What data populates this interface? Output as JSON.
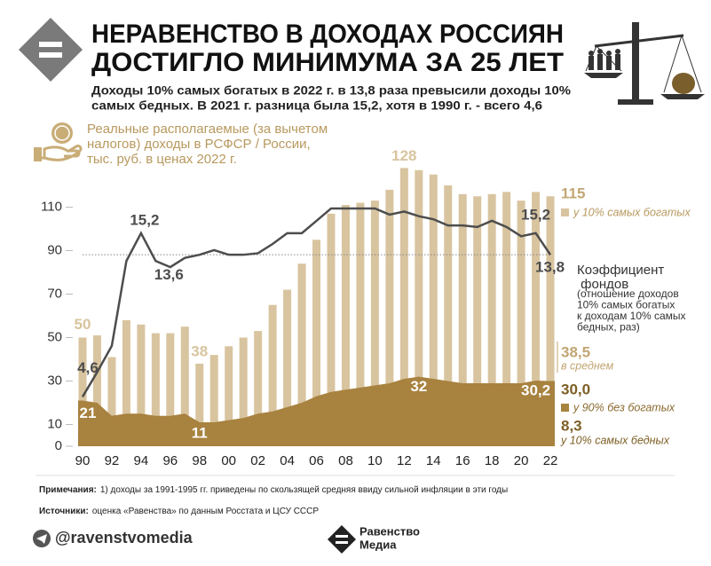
{
  "header": {
    "title_lines": [
      "НЕРАВЕНСТВО В ДОХОДАХ РОССИЯН",
      "ДОСТИГЛО МИНИМУМА ЗА 25 ЛЕТ"
    ],
    "subtitle_lines": [
      "Доходы 10% самых богатых в 2022 г. в 13,8 раза превысили доходы 10%",
      "самых бедных. В 2021 г. разница была 15,2, хотя в 1990 г. - всего 4,6"
    ]
  },
  "chart_data": {
    "type": "bar",
    "axis_note_lines": [
      "Реальные располагаемые (за вычетом",
      "налогов) доходы в РСФСР / России,",
      "тыс. руб. в ценах 2022 г."
    ],
    "categories": [
      "90",
      null,
      "92",
      null,
      "94",
      null,
      "96",
      null,
      "98",
      null,
      "00",
      null,
      "02",
      null,
      "04",
      null,
      "06",
      null,
      "08",
      null,
      "10",
      null,
      "12",
      null,
      "14",
      null,
      "16",
      null,
      "18",
      null,
      "20",
      null,
      "22"
    ],
    "ylim": [
      0,
      130
    ],
    "yticks": [
      0,
      10,
      30,
      50,
      70,
      90,
      110
    ],
    "y2lim": [
      1.4,
      19.7
    ],
    "series": [
      {
        "name": "у 10% самых богатых",
        "color": "#d8c49f",
        "values": [
          50,
          51,
          41,
          58,
          56,
          52,
          52,
          55,
          38,
          42,
          46,
          50,
          53,
          65,
          72,
          84,
          95,
          107,
          111,
          112,
          113,
          118,
          128,
          127,
          125,
          120,
          116,
          115,
          116,
          117,
          113,
          117,
          115
        ],
        "value_labels": [
          "50",
          null,
          null,
          null,
          null,
          null,
          null,
          null,
          "38",
          null,
          null,
          null,
          null,
          null,
          null,
          null,
          null,
          null,
          null,
          null,
          null,
          null,
          "128",
          null,
          null,
          null,
          null,
          null,
          null,
          null,
          null,
          null,
          "115"
        ]
      },
      {
        "name": "у 90% без богатых",
        "color": "#a8823f",
        "values": [
          21,
          20,
          14,
          15,
          15,
          14,
          14,
          15,
          11,
          11,
          12,
          13,
          15,
          16,
          18,
          20,
          23,
          25,
          26,
          27,
          28,
          29,
          31,
          32,
          31,
          30,
          29,
          29,
          29,
          29,
          29,
          30.2,
          30
        ],
        "value_labels": [
          "21",
          null,
          null,
          null,
          null,
          null,
          null,
          null,
          "11",
          null,
          null,
          null,
          null,
          null,
          null,
          null,
          null,
          null,
          null,
          null,
          null,
          null,
          null,
          "32",
          null,
          null,
          null,
          null,
          null,
          null,
          null,
          "30,2",
          "30,0"
        ]
      },
      {
        "name": "Коэффициент фондов",
        "axis": "y2",
        "color": "#4d4d4d",
        "values": [
          4.6,
          6.2,
          7.9,
          13.4,
          15.2,
          13.4,
          13.0,
          13.6,
          13.8,
          14.1,
          13.8,
          13.8,
          13.9,
          14.5,
          15.2,
          15.2,
          16.0,
          16.8,
          16.8,
          16.8,
          16.8,
          16.4,
          16.6,
          16.3,
          16.1,
          15.7,
          15.7,
          15.6,
          16.0,
          15.6,
          15.0,
          15.2,
          13.8
        ],
        "value_labels": [
          "4,6",
          null,
          null,
          null,
          "15,2",
          null,
          null,
          "13,6",
          null,
          null,
          null,
          null,
          null,
          null,
          null,
          null,
          null,
          null,
          null,
          null,
          null,
          null,
          null,
          null,
          null,
          null,
          null,
          null,
          null,
          null,
          null,
          "15,2",
          "13,8"
        ],
        "description_lines": [
          "(отношение доходов",
          "10% самых богатых",
          "к доходам 10% самых",
          "бедных, раз)"
        ]
      }
    ],
    "annotations": [
      {
        "value": 38.5,
        "label": "38,5",
        "text": "в среднем",
        "color": "#c2a673"
      },
      {
        "value": 8.3,
        "label": "8,3",
        "text": "у 10% самых бедных",
        "color": "#7d5f25"
      }
    ]
  },
  "notes": {
    "label": "Примечания:",
    "text": "1) доходы за 1991-1995 гг. приведены по скользящей средняя ввиду сильной инфляции в эти годы"
  },
  "sources": {
    "label": "Источники:",
    "text": "оценка «Равенства» по данным Росстата и ЦСУ СССР"
  },
  "footer": {
    "handle": "@ravenstvomedia",
    "logo_lines": [
      "Равенство",
      "Медиа"
    ]
  }
}
